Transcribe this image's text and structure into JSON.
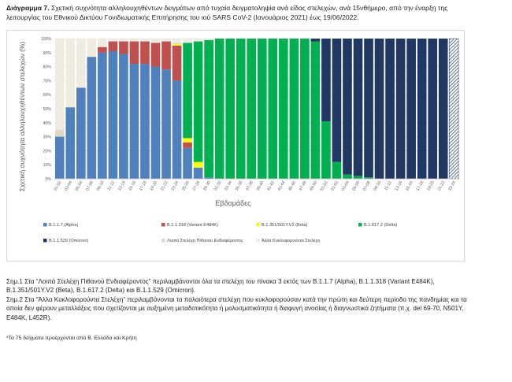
{
  "caption": {
    "label": "Διάγραμμα 7.",
    "text": " Σχετική συχνότητα αλληλουχηθέντων δειγμάτων από τυχαία δειγματοληψία ανά είδος στελεχών, ανά 15νθήμερο, από την έναρξη της λειτουργίας του Εθνικού Δικτύου Γονιδιωματικής Επιτήρησης του ιού SARS CoV-2 (Ιανουάριος 2021) έως 19/06/2022."
  },
  "notes": {
    "note1": "Σημ.1 Στα “Λοιπά Στελέχη Πιθανού Ενδιαφέροντος” περιλαμβάνονται όλα τα στελέχη του πίνακα 3 εκτός των B.1.1.7 (Alpha), B.1.1.318 (Variant E484K), B.1.351/501Y.V2 (Beta), B.1.617.2 (Delta) και B.1.1.529 (Omicron).",
    "note2": "Σημ.2 Στα “Άλλα Κυκλοφορούντα Στελέχη” περιλαμβάνονται τα παλαιότερα στελέχη που κυκλοφορούσαν κατά την πρώτη και δεύτερη περίοδο της πανδημίας και τα οποία δεν φέρουν μεταλλάξεις που σχετίζονται με αυξημένη μεταδοτικότητα ή μολυσματικότητα ή διαφυγή ανοσίας ή διαγνωστικά ζητήματα (π.χ. del 69-70, N501Y, E484K, L452R).",
    "footnote": "*Τα 75 δείγματα προέρχονται από Β. Ελλάδα και Κρήτη"
  },
  "chart_data": {
    "type": "bar",
    "stacked": true,
    "xlabel": "Εβδομάδες",
    "ylabel": "Σχετική συχνότητα αλληλουχηθέντων στελεχών (%)",
    "ylim": [
      0,
      100
    ],
    "yticks": [
      "0%",
      "10%",
      "20%",
      "30%",
      "40%",
      "50%",
      "60%",
      "70%",
      "80%",
      "90%",
      "100%"
    ],
    "categories": [
      "01-02",
      "03-04",
      "05-06",
      "07-08",
      "09-10",
      "11-12",
      "13-14",
      "15-16",
      "17-18",
      "19-20",
      "21-22",
      "23-24",
      "25-26",
      "27-28",
      "29-30",
      "31-32",
      "33-34",
      "35-36",
      "37-38",
      "39-40",
      "41-42",
      "43-44",
      "45-46",
      "47-48",
      "49-50",
      "51-52",
      "01-02",
      "03-04",
      "05-06",
      "07-08",
      "09-10",
      "11-12",
      "13-14",
      "15-16",
      "17-18",
      "19-20",
      "21-22",
      "23-24"
    ],
    "series": [
      {
        "name": "B.1.1.7 (Alpha)",
        "color": "#4f81bd",
        "values": [
          30,
          51,
          65,
          87,
          90,
          91,
          89,
          82,
          82,
          80,
          78,
          70,
          22,
          8,
          1,
          0,
          0,
          0,
          0,
          0,
          0,
          0,
          0,
          0,
          0,
          0,
          0,
          0,
          0,
          0,
          0,
          0,
          0,
          0,
          0,
          0,
          0,
          0
        ]
      },
      {
        "name": "B.1.1.318 (Variant E484K)",
        "color": "#c0504d",
        "values": [
          0,
          0,
          0,
          0,
          4,
          7,
          9,
          16,
          16,
          17,
          20,
          25,
          4,
          0,
          0,
          0,
          0,
          0,
          0,
          0,
          0,
          0,
          0,
          0,
          0,
          0,
          0,
          0,
          0,
          0,
          0,
          0,
          0,
          0,
          0,
          0,
          0,
          0
        ]
      },
      {
        "name": "B.1.351/501Y.V2 (Beta)",
        "color": "#ffff00",
        "values": [
          0,
          0,
          0,
          0,
          0,
          0,
          0,
          0,
          0,
          0,
          0,
          1,
          3,
          4,
          0,
          0,
          0,
          0,
          0,
          0,
          0,
          0,
          0,
          0,
          0,
          0,
          0,
          0,
          0,
          0,
          0,
          0,
          0,
          0,
          0,
          0,
          0,
          0
        ]
      },
      {
        "name": "B.1.617.2 (Delta)",
        "color": "#00b050",
        "values": [
          0,
          0,
          0,
          0,
          0,
          0,
          0,
          0,
          0,
          0,
          0,
          0,
          68,
          86,
          98,
          100,
          100,
          100,
          100,
          100,
          100,
          100,
          100,
          100,
          98,
          41,
          12,
          3,
          2,
          1,
          0,
          0,
          0,
          0,
          0,
          0,
          0,
          0
        ]
      },
      {
        "name": "B.1.1.529 (Omicron)",
        "color": "#1f3864",
        "values": [
          0,
          0,
          0,
          0,
          0,
          0,
          0,
          0,
          0,
          0,
          0,
          0,
          0,
          0,
          0,
          0,
          0,
          0,
          0,
          0,
          0,
          0,
          0,
          0,
          2,
          59,
          88,
          97,
          98,
          99,
          100,
          100,
          100,
          100,
          100,
          100,
          100,
          100
        ]
      },
      {
        "name": "Λοιπά Στελέχη Πιθανού Ενδιαφέροντος",
        "color": "#ddd9c4",
        "values": [
          5,
          0,
          0,
          0,
          0,
          0,
          0,
          0,
          0,
          0,
          0,
          1,
          0,
          0,
          0,
          0,
          0,
          0,
          0,
          0,
          0,
          0,
          0,
          0,
          0,
          0,
          0,
          0,
          0,
          0,
          0,
          0,
          0,
          0,
          0,
          0,
          0,
          0
        ]
      },
      {
        "name": "Άλλα Κυκλοφορούντα Στελέχη",
        "color": "#eeece1",
        "values": [
          65,
          49,
          35,
          13,
          6,
          2,
          2,
          2,
          2,
          3,
          2,
          3,
          3,
          2,
          1,
          0,
          0,
          0,
          0,
          0,
          0,
          0,
          0,
          0,
          0,
          0,
          0,
          0,
          0,
          0,
          0,
          0,
          0,
          0,
          0,
          0,
          0,
          0
        ]
      }
    ],
    "hatched_last_bar": true,
    "gridlines": true,
    "legend_position": "bottom"
  }
}
